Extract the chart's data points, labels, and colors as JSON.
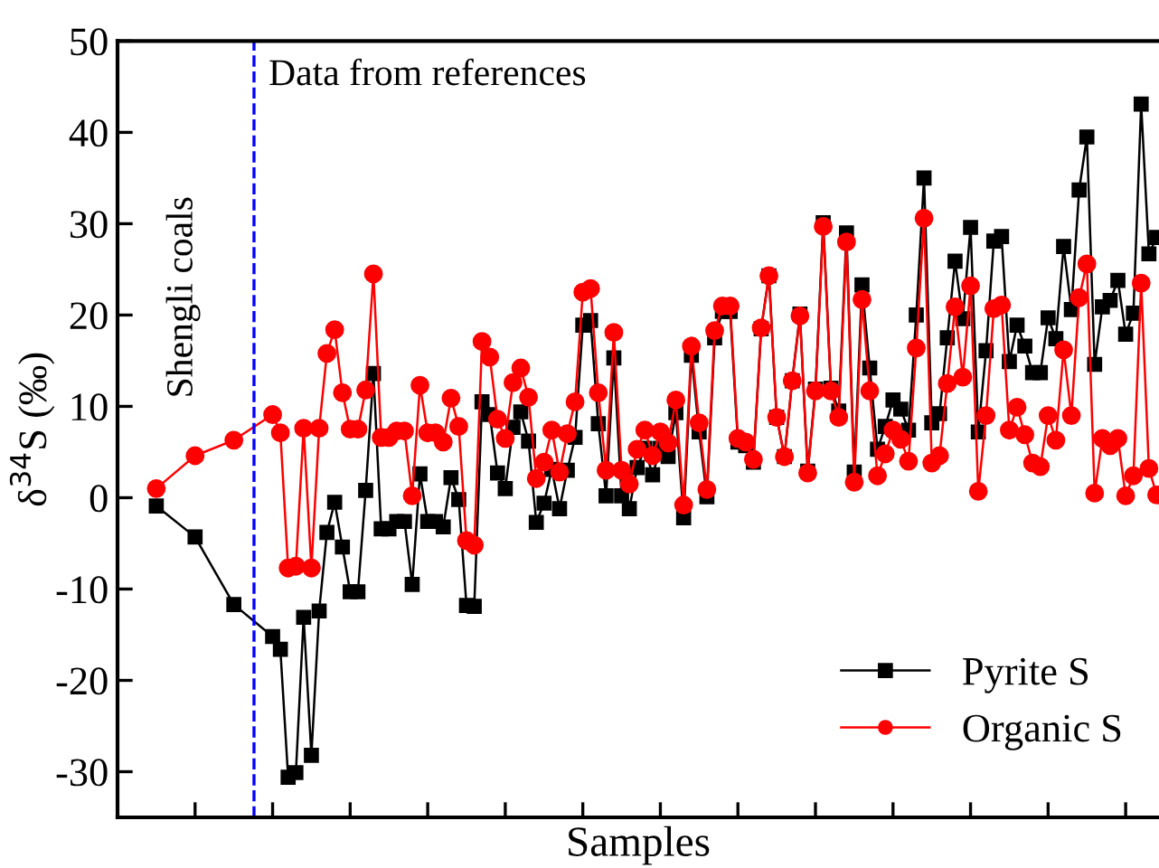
{
  "chart_data": {
    "type": "line",
    "xlabel": "Samples",
    "ylabel": "δ$^{34}$S (‰)",
    "ylim": [
      -35,
      50
    ],
    "yticks": [
      -30,
      -20,
      -10,
      0,
      10,
      20,
      30,
      40,
      50
    ],
    "categories": [
      null,
      null,
      null,
      null,
      null,
      null,
      null,
      null,
      null,
      null,
      null,
      null,
      null,
      null,
      null,
      null,
      null,
      null,
      null,
      null,
      null,
      null,
      null,
      null,
      null,
      null,
      null,
      null,
      null,
      null,
      null,
      null,
      null,
      null,
      null,
      null,
      null,
      null,
      null,
      null,
      null,
      null,
      null,
      null,
      null,
      null,
      null,
      null,
      null,
      null,
      null,
      null,
      null,
      null,
      null,
      null,
      null,
      null,
      null,
      null,
      null,
      null,
      null,
      null,
      null,
      null,
      null,
      null,
      null,
      null,
      null,
      null,
      null,
      null,
      null,
      null,
      null,
      null,
      null,
      null,
      null,
      null,
      null,
      null,
      null,
      null,
      null,
      null,
      null,
      null,
      null,
      null,
      null,
      null,
      null,
      null,
      null,
      null,
      null,
      null,
      null,
      null,
      null,
      null,
      null,
      null,
      null,
      null,
      null,
      null,
      null,
      null,
      null,
      null,
      null,
      null,
      null,
      null,
      null,
      null,
      null,
      null,
      null,
      null,
      null,
      null,
      null,
      null,
      null,
      null
    ],
    "grid": false,
    "legend": "bottom right",
    "line_style": "solid",
    "annotations": [
      "Data from references",
      "Shengli coals"
    ],
    "series": [
      {
        "name": "Pyrite S",
        "color": "#000000",
        "marker": "square",
        "values": [
          -0.9,
          null,
          null,
          null,
          null,
          -4.3,
          null,
          null,
          null,
          null,
          -11.7,
          null,
          null,
          null,
          null,
          -15.2,
          -16.6,
          -30.6,
          -30.1,
          -13.1,
          -28.2,
          -12.4,
          -3.8,
          -0.5,
          -5.4,
          -10.3,
          -10.3,
          0.8,
          13.6,
          -3.4,
          -3.4,
          -2.6,
          -2.6,
          -9.5,
          2.6,
          -2.6,
          -2.6,
          -3.2,
          2.2,
          -0.2,
          -11.8,
          -11.9,
          10.5,
          9.1,
          2.7,
          1.0,
          7.7,
          9.4,
          6.2,
          -2.7,
          -0.6,
          3.1,
          -1.2,
          3.0,
          6.6,
          18.9,
          19.4,
          8.1,
          0.2,
          15.3,
          0.2,
          -1.2,
          3.3,
          5.4,
          2.5,
          5.4,
          4.5,
          9.3,
          -2.2,
          15.6,
          7.2,
          0.1,
          17.5,
          20.4,
          20.4,
          6.1,
          5.7,
          3.9,
          18.5,
          24.3,
          8.8,
          4.5,
          12.8,
          20.1,
          2.9,
          11.9,
          30.1,
          12.0,
          9.5,
          29.0,
          2.8,
          23.3,
          14.2,
          5.3,
          7.8,
          10.7,
          9.7,
          7.4,
          20.0,
          35.0,
          8.2,
          9.2,
          17.5,
          25.9,
          19.6,
          29.6,
          7.2,
          16.1,
          28.1,
          28.6,
          14.9,
          18.9,
          16.6,
          13.7,
          13.7,
          19.7,
          17.4,
          27.5,
          20.6,
          33.7,
          39.5,
          14.6,
          20.9,
          21.6,
          23.8,
          17.9,
          20.2,
          43.1,
          26.7,
          28.5
        ]
      },
      {
        "name": "Organic S",
        "color": "#ff0000",
        "marker": "circle",
        "values": [
          1.0,
          null,
          null,
          null,
          null,
          4.6,
          null,
          null,
          null,
          null,
          6.3,
          null,
          null,
          null,
          null,
          9.1,
          7.1,
          -7.7,
          -7.5,
          7.6,
          -7.7,
          7.6,
          15.8,
          18.4,
          11.5,
          7.5,
          7.5,
          11.8,
          24.5,
          6.6,
          6.6,
          7.3,
          7.3,
          0.2,
          12.3,
          7.1,
          7.1,
          6.1,
          10.9,
          7.8,
          -4.7,
          -5.2,
          17.1,
          15.4,
          8.6,
          6.5,
          12.6,
          14.2,
          11.0,
          2.1,
          3.9,
          7.4,
          2.8,
          7.0,
          10.5,
          22.5,
          22.9,
          11.5,
          3.0,
          18.1,
          3.0,
          1.5,
          5.3,
          7.4,
          4.6,
          7.2,
          6.0,
          10.7,
          -0.8,
          16.6,
          8.2,
          0.9,
          18.3,
          21.0,
          21.0,
          6.5,
          6.1,
          4.2,
          18.6,
          24.3,
          8.8,
          4.5,
          12.8,
          19.9,
          2.7,
          11.7,
          29.7,
          11.7,
          8.8,
          28.0,
          1.7,
          21.7,
          11.7,
          2.4,
          4.8,
          7.4,
          6.4,
          4.0,
          16.4,
          30.6,
          3.8,
          4.6,
          12.5,
          20.9,
          13.2,
          23.2,
          0.7,
          9.0,
          20.7,
          21.1,
          7.4,
          9.9,
          6.9,
          3.8,
          3.4,
          9.0,
          6.3,
          16.2,
          9.0,
          21.9,
          25.6,
          0.5,
          6.5,
          5.7,
          6.5,
          0.2,
          2.4,
          23.5,
          3.2,
          0.3
        ]
      }
    ]
  }
}
